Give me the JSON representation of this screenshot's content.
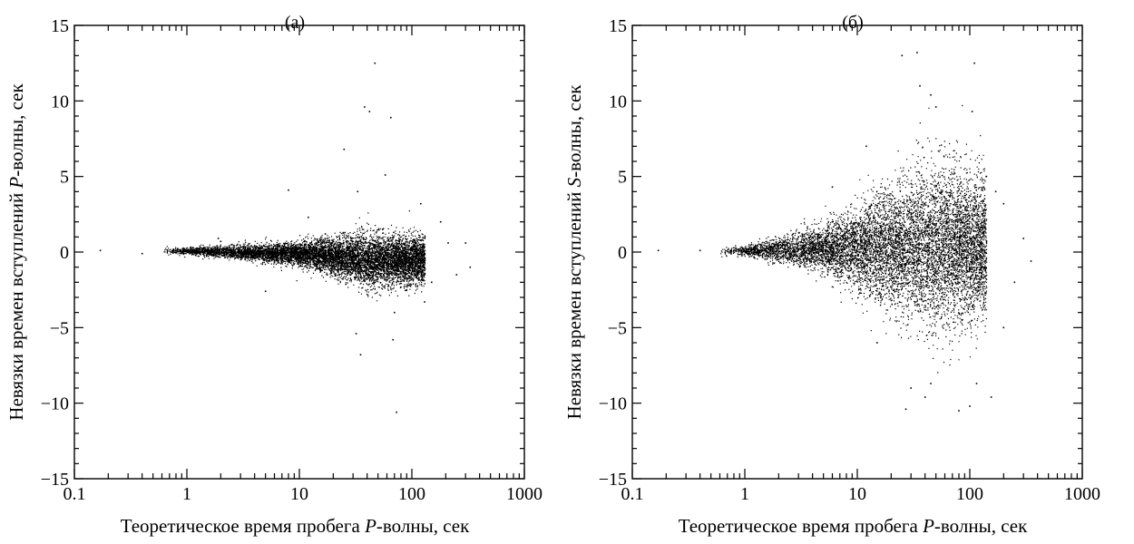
{
  "chart_data": [
    {
      "type": "scatter",
      "title": "(а)",
      "xlabel": {
        "prefix": "Теоретическое время пробега ",
        "italic": "P",
        "suffix": "-волны, сек"
      },
      "ylabel": {
        "prefix": "Невязки времен вступлений ",
        "italic": "P",
        "suffix": "-волны, сек"
      },
      "x_scale": "log",
      "xlim": [
        0.1,
        1000
      ],
      "ylim": [
        -15,
        15
      ],
      "x_ticks": [
        0.1,
        1,
        10,
        100,
        1000
      ],
      "x_tick_labels": [
        "0.1",
        "1",
        "10",
        "100",
        "1000"
      ],
      "y_ticks": [
        -15,
        -10,
        -5,
        0,
        5,
        10,
        15
      ],
      "y_tick_labels": [
        "−15",
        "−10",
        "−5",
        "0",
        "5",
        "10",
        "15"
      ],
      "grid": false,
      "marker_color": "#000000",
      "cloud": {
        "x_range": [
          0.6,
          130
        ],
        "center_y": [
          [
            1,
            0.1
          ],
          [
            10,
            -0.1
          ],
          [
            40,
            -0.5
          ],
          [
            110,
            -0.5
          ]
        ],
        "spread_y": [
          [
            1,
            0.15
          ],
          [
            10,
            0.5
          ],
          [
            40,
            1.1
          ],
          [
            110,
            1.0
          ]
        ]
      },
      "points": [
        [
          0.17,
          0.1
        ],
        [
          0.4,
          -0.1
        ],
        [
          1.9,
          0.9
        ],
        [
          2.0,
          0.7
        ],
        [
          17,
          1.2
        ],
        [
          25,
          6.8
        ],
        [
          33,
          4.0
        ],
        [
          38,
          9.6
        ],
        [
          42,
          9.3
        ],
        [
          47,
          12.5
        ],
        [
          58,
          5.1
        ],
        [
          65,
          8.9
        ],
        [
          70,
          -4.0
        ],
        [
          73,
          -10.6
        ],
        [
          68,
          -5.8
        ],
        [
          35,
          -6.8
        ],
        [
          32,
          -5.4
        ],
        [
          8,
          4.1
        ],
        [
          12,
          2.3
        ],
        [
          120,
          3.2
        ],
        [
          150,
          -2.0
        ],
        [
          180,
          2.0
        ],
        [
          210,
          0.6
        ],
        [
          250,
          -1.5
        ],
        [
          300,
          0.6
        ],
        [
          330,
          -1.0
        ],
        [
          130,
          -3.3
        ],
        [
          90,
          -2.5
        ],
        [
          5,
          -2.6
        ],
        [
          55,
          1.5
        ]
      ]
    },
    {
      "type": "scatter",
      "title": "(б)",
      "xlabel": {
        "prefix": "Теоретическое время пробега ",
        "italic": "P",
        "suffix": "-волны, сек"
      },
      "ylabel": {
        "prefix": "Невязки времен вступлений ",
        "italic": "S",
        "suffix": "-волны, сек"
      },
      "x_scale": "log",
      "xlim": [
        0.1,
        1000
      ],
      "ylim": [
        -15,
        15
      ],
      "x_ticks": [
        0.1,
        1,
        10,
        100,
        1000
      ],
      "x_tick_labels": [
        "0.1",
        "1",
        "10",
        "100",
        "1000"
      ],
      "y_ticks": [
        -15,
        -10,
        -5,
        0,
        5,
        10,
        15
      ],
      "y_tick_labels": [
        "−15",
        "−10",
        "−5",
        "0",
        "5",
        "10",
        "15"
      ],
      "grid": false,
      "marker_color": "#000000",
      "cloud": {
        "x_range": [
          0.6,
          140
        ],
        "center_y": [
          [
            1,
            0.1
          ],
          [
            5,
            0.3
          ],
          [
            20,
            0.2
          ],
          [
            60,
            0.5
          ],
          [
            120,
            0.3
          ]
        ],
        "spread_y": [
          [
            1,
            0.2
          ],
          [
            5,
            1.0
          ],
          [
            20,
            2.6
          ],
          [
            60,
            3.5
          ],
          [
            120,
            3.0
          ]
        ]
      },
      "points": [
        [
          0.17,
          0.1
        ],
        [
          0.4,
          0.1
        ],
        [
          2.0,
          -0.5
        ],
        [
          25,
          13.0
        ],
        [
          34,
          13.2
        ],
        [
          36,
          11.0
        ],
        [
          45,
          10.4
        ],
        [
          50,
          9.6
        ],
        [
          110,
          12.5
        ],
        [
          105,
          9.3
        ],
        [
          27,
          -10.4
        ],
        [
          30,
          -9.0
        ],
        [
          40,
          -9.6
        ],
        [
          45,
          -8.7
        ],
        [
          80,
          -10.5
        ],
        [
          100,
          -10.2
        ],
        [
          115,
          -8.7
        ],
        [
          155,
          -9.6
        ],
        [
          140,
          5.0
        ],
        [
          170,
          4.0
        ],
        [
          200,
          3.2
        ],
        [
          250,
          -2.0
        ],
        [
          300,
          0.9
        ],
        [
          350,
          -0.6
        ],
        [
          200,
          -5.0
        ],
        [
          6,
          2.0
        ],
        [
          3,
          1.0
        ],
        [
          15,
          -6.0
        ],
        [
          12,
          7.0
        ],
        [
          6,
          4.3
        ]
      ]
    }
  ]
}
